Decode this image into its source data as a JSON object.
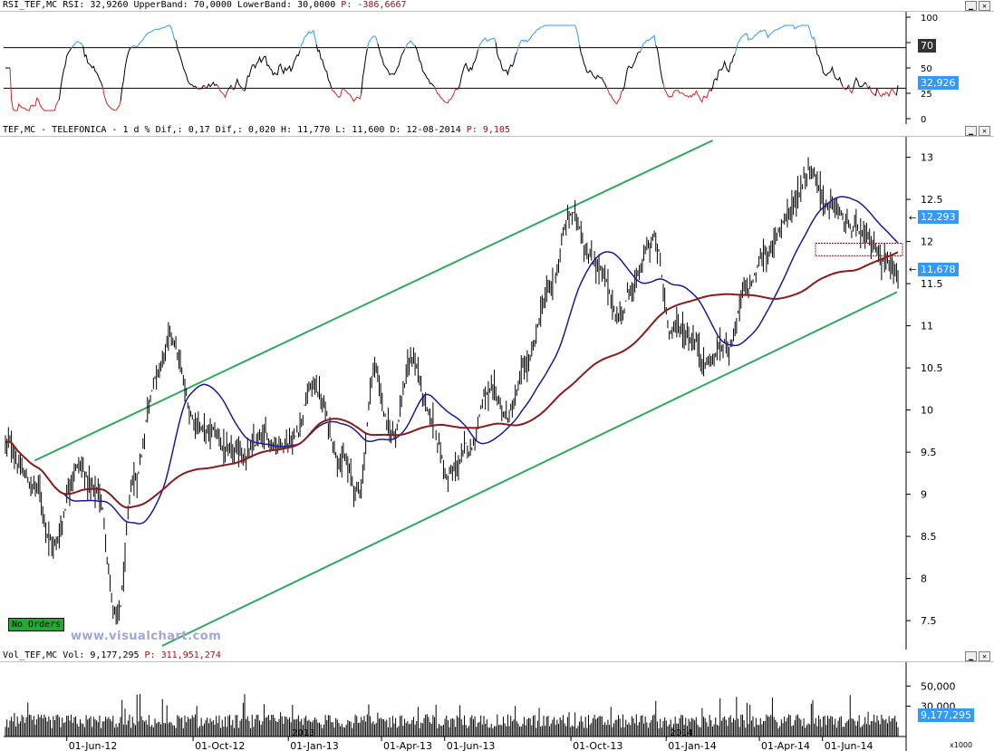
{
  "rsi_panel": {
    "header": "RSI_TEF,MC RSI: 32,9260 UpperBand: 70,0000 LowerBand: 30,0000",
    "header_p_label": "P:",
    "header_p_value": "-386,6667",
    "y_ticks": [
      "100",
      "75",
      "50",
      "25",
      "0"
    ],
    "upper_band_badge": "70",
    "current_badge": "32,926"
  },
  "price_panel": {
    "header": "TEF,MC - TELEFONICA -  1 d % Dif,: 0,17 Dif,: 0,020 H: 11,770 L: 11,600 D: 12-08-2014",
    "header_p_label": "P:",
    "header_p_value": "9,105",
    "y_ticks": [
      "13",
      "12.5",
      "12",
      "11.5",
      "11",
      "10.5",
      "10",
      "9.5",
      "9",
      "8.5",
      "8",
      "7.5"
    ],
    "badge_blue_ma": "12,293",
    "badge_red_ma": "11,678",
    "no_orders": "No Orders",
    "watermark": "www.visualchart.com"
  },
  "volume_panel": {
    "header": "Vol_TEF,MC Vol: 9,177,295",
    "header_p_label": "P:",
    "header_p_value": "311,951,274",
    "y_ticks": [
      "50,000",
      "30,000"
    ],
    "current_badge": "9,177,295",
    "multiplier": "x1000"
  },
  "x_axis": {
    "labels": [
      "01-Jun-12",
      "01-Oct-12",
      "01-Jan-13",
      "01-Apr-13",
      "01-Jun-13",
      "01-Oct-13",
      "01-Jan-14",
      "01-Apr-14",
      "01-Jun-14"
    ],
    "year_markers": [
      "2013",
      "2014"
    ]
  },
  "colors": {
    "channel": "#2eaa5c",
    "ma_short": "#1a1a99",
    "ma_long": "#8b1a1a",
    "rsi_over": "#3399ff",
    "rsi_under": "#dd2222",
    "badge": "#3399ff"
  },
  "chart_data": [
    {
      "type": "line",
      "name_ref": "rsi",
      "ylim": [
        0,
        100
      ],
      "upper_band": 70,
      "lower_band": 30,
      "last_value": 32.926
    },
    {
      "type": "line",
      "name_ref": "price",
      "ylim": [
        7.2,
        13.2
      ],
      "x_start": "2012-04-01",
      "x_end": "2014-08-12",
      "close_keypoints": [
        [
          "2012-04-01",
          9.6
        ],
        [
          "2012-05-01",
          9.1
        ],
        [
          "2012-05-20",
          8.4
        ],
        [
          "2012-06-10",
          9.4
        ],
        [
          "2012-07-01",
          9.0
        ],
        [
          "2012-07-20",
          7.5
        ],
        [
          "2012-08-05",
          9.1
        ],
        [
          "2012-08-25",
          10.4
        ],
        [
          "2012-09-10",
          10.8
        ],
        [
          "2012-10-01",
          9.9
        ],
        [
          "2012-10-20",
          9.7
        ],
        [
          "2012-11-10",
          9.4
        ],
        [
          "2012-12-10",
          9.6
        ],
        [
          "2013-01-05",
          9.7
        ],
        [
          "2013-01-25",
          10.3
        ],
        [
          "2013-02-20",
          9.5
        ],
        [
          "2013-03-10",
          9.0
        ],
        [
          "2013-03-25",
          10.5
        ],
        [
          "2013-04-10",
          9.7
        ],
        [
          "2013-05-01",
          10.6
        ],
        [
          "2013-05-20",
          9.8
        ],
        [
          "2013-06-05",
          9.2
        ],
        [
          "2013-06-25",
          9.5
        ],
        [
          "2013-07-10",
          10.2
        ],
        [
          "2013-08-01",
          9.9
        ],
        [
          "2013-08-20",
          10.5
        ],
        [
          "2013-09-10",
          11.4
        ],
        [
          "2013-10-01",
          12.3
        ],
        [
          "2013-10-25",
          11.8
        ],
        [
          "2013-11-15",
          11.1
        ],
        [
          "2013-12-01",
          11.5
        ],
        [
          "2013-12-20",
          12.0
        ],
        [
          "2014-01-05",
          11.0
        ],
        [
          "2014-01-25",
          10.9
        ],
        [
          "2014-02-10",
          10.6
        ],
        [
          "2014-03-01",
          10.8
        ],
        [
          "2014-03-20",
          11.4
        ],
        [
          "2014-04-10",
          11.9
        ],
        [
          "2014-05-01",
          12.4
        ],
        [
          "2014-05-20",
          12.9
        ],
        [
          "2014-06-10",
          12.4
        ],
        [
          "2014-07-01",
          12.1
        ],
        [
          "2014-07-20",
          11.9
        ],
        [
          "2014-08-12",
          11.7
        ]
      ],
      "ma_short_last": 12.293,
      "ma_long_last": 11.678,
      "channel_upper": [
        [
          "2012-05-01",
          9.4
        ],
        [
          "2014-02-15",
          13.2
        ]
      ],
      "channel_lower": [
        [
          "2012-09-01",
          7.2
        ],
        [
          "2014-08-12",
          11.4
        ]
      ]
    },
    {
      "type": "bar",
      "name_ref": "volume",
      "ylim": [
        0,
        70000
      ],
      "last_value": 9177.295
    }
  ]
}
